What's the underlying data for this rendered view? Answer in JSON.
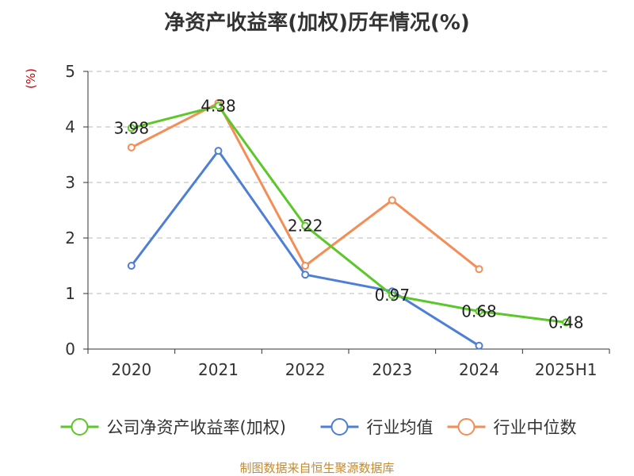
{
  "title": "净资产收益率(加权)历年情况(%)",
  "y_unit_label": "(%)",
  "footer": "制图数据来自恒生聚源数据库",
  "chart_data": {
    "type": "line",
    "title": "净资产收益率(加权)历年情况(%)",
    "xlabel": "",
    "ylabel": "(%)",
    "categories": [
      "2020",
      "2021",
      "2022",
      "2023",
      "2024",
      "2025H1"
    ],
    "ylim": [
      0,
      5
    ],
    "yticks": [
      0,
      1,
      2,
      3,
      4,
      5
    ],
    "grid": true,
    "legend": "bottom",
    "series": [
      {
        "name": "公司净资产收益率(加权)",
        "color": "#5bc728",
        "values": [
          3.98,
          4.38,
          2.22,
          0.97,
          0.68,
          0.48
        ],
        "labels": [
          "3.98",
          "4.38",
          "2.22",
          "0.97",
          "0.68",
          "0.48"
        ]
      },
      {
        "name": "行业均值",
        "color": "#4e7fd6",
        "values": [
          1.5,
          3.57,
          1.34,
          1.04,
          0.06,
          null
        ],
        "labels": null
      },
      {
        "name": "行业中位数",
        "color": "#f58d56",
        "values": [
          3.63,
          4.43,
          1.5,
          2.68,
          1.44,
          null
        ],
        "labels": null
      }
    ]
  }
}
